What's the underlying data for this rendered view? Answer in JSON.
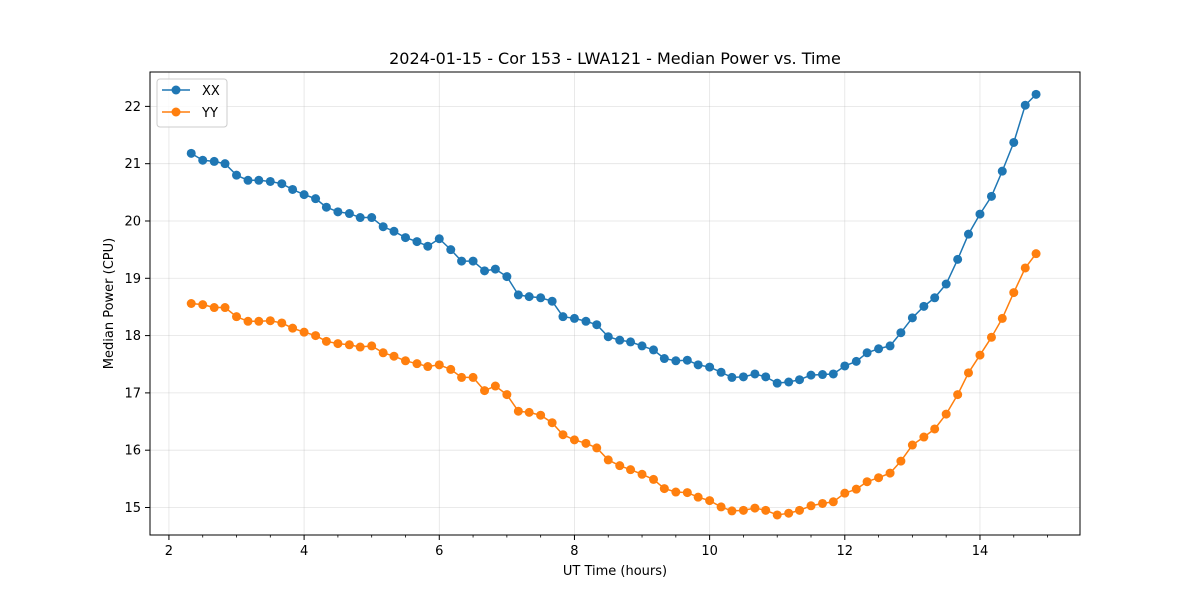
{
  "chart_data": {
    "type": "line",
    "title": "2024-01-15 - Cor 153 - LWA121 - Median Power vs. Time",
    "xlabel": "UT Time (hours)",
    "ylabel": "Median Power (CPU)",
    "xlim": [
      1.72,
      15.48
    ],
    "ylim": [
      14.52,
      22.6
    ],
    "x_ticks": [
      2,
      4,
      6,
      8,
      10,
      12,
      14
    ],
    "y_ticks": [
      15,
      16,
      17,
      18,
      19,
      20,
      21,
      22
    ],
    "grid": true,
    "legend_position": "top-left",
    "x": [
      2.33,
      2.5,
      2.67,
      2.83,
      3.0,
      3.17,
      3.33,
      3.5,
      3.67,
      3.83,
      4.0,
      4.17,
      4.33,
      4.5,
      4.67,
      4.83,
      5.0,
      5.17,
      5.33,
      5.5,
      5.67,
      5.83,
      6.0,
      6.17,
      6.33,
      6.5,
      6.67,
      6.83,
      7.0,
      7.17,
      7.33,
      7.5,
      7.67,
      7.83,
      8.0,
      8.17,
      8.33,
      8.5,
      8.67,
      8.83,
      9.0,
      9.17,
      9.33,
      9.5,
      9.67,
      9.83,
      10.0,
      10.17,
      10.33,
      10.5,
      10.67,
      10.83,
      11.0,
      11.17,
      11.33,
      11.5,
      11.67,
      11.83,
      12.0,
      12.17,
      12.33,
      12.5,
      12.67,
      12.83,
      13.0,
      13.17,
      13.33,
      13.5,
      13.67,
      13.83,
      14.0,
      14.17,
      14.33,
      14.5,
      14.67,
      14.83
    ],
    "series": [
      {
        "name": "XX",
        "color": "#1f77b4",
        "values": [
          21.18,
          21.06,
          21.04,
          21.0,
          20.8,
          20.71,
          20.71,
          20.69,
          20.65,
          20.55,
          20.46,
          20.39,
          20.24,
          20.16,
          20.13,
          20.06,
          20.06,
          19.9,
          19.82,
          19.71,
          19.64,
          19.56,
          19.69,
          19.5,
          19.3,
          19.3,
          19.13,
          19.16,
          19.03,
          18.71,
          18.68,
          18.66,
          18.6,
          18.33,
          18.3,
          18.25,
          18.19,
          17.98,
          17.92,
          17.89,
          17.82,
          17.75,
          17.6,
          17.56,
          17.57,
          17.49,
          17.45,
          17.36,
          17.27,
          17.28,
          17.33,
          17.28,
          17.17,
          17.19,
          17.23,
          17.31,
          17.32,
          17.33,
          17.47,
          17.55,
          17.7,
          17.77,
          17.82,
          18.05,
          18.31,
          18.51,
          18.66,
          18.9,
          19.33,
          19.77,
          20.12,
          20.43,
          20.87,
          21.37,
          22.02,
          22.21
        ]
      },
      {
        "name": "YY",
        "color": "#ff7f0e",
        "values": [
          18.56,
          18.54,
          18.49,
          18.49,
          18.33,
          18.25,
          18.25,
          18.26,
          18.22,
          18.13,
          18.06,
          18.0,
          17.9,
          17.86,
          17.84,
          17.8,
          17.82,
          17.7,
          17.64,
          17.56,
          17.51,
          17.46,
          17.49,
          17.41,
          17.27,
          17.27,
          17.04,
          17.12,
          16.97,
          16.68,
          16.66,
          16.61,
          16.48,
          16.27,
          16.18,
          16.12,
          16.04,
          15.83,
          15.73,
          15.66,
          15.58,
          15.49,
          15.33,
          15.27,
          15.26,
          15.18,
          15.12,
          15.01,
          14.94,
          14.95,
          14.99,
          14.95,
          14.87,
          14.9,
          14.95,
          15.03,
          15.07,
          15.1,
          15.25,
          15.32,
          15.45,
          15.52,
          15.6,
          15.81,
          16.09,
          16.23,
          16.37,
          16.63,
          16.97,
          17.35,
          17.66,
          17.97,
          18.3,
          18.75,
          19.18,
          19.43
        ]
      }
    ]
  }
}
